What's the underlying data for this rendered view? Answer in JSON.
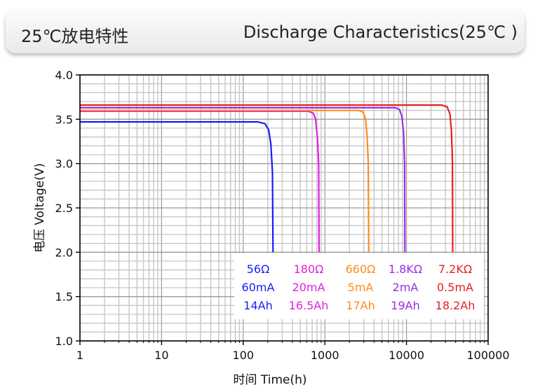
{
  "header": {
    "title_cn": "25℃放电特性",
    "title_en": "Discharge Characteristics(25℃ )"
  },
  "chart_data": {
    "type": "line",
    "title": "Discharge Characteristics(25℃ )",
    "xlabel": "时间 Time(h)",
    "ylabel": "电压 Voltage(V)",
    "xscale": "log",
    "xlim": [
      1,
      100000
    ],
    "ylim": [
      1.0,
      4.0
    ],
    "grid": true,
    "x_tick_labels": [
      "1",
      "10",
      "100",
      "1000",
      "10000",
      "100000"
    ],
    "y_tick_labels": [
      "1.0",
      "1.5",
      "2.0",
      "2.5",
      "3.0",
      "3.5",
      "4.0"
    ],
    "series": [
      {
        "name": "56Ω",
        "current": "60mA",
        "capacity": "14Ah",
        "color": "#1a1aff",
        "points": [
          [
            1,
            3.47
          ],
          [
            150,
            3.47
          ],
          [
            185,
            3.45
          ],
          [
            205,
            3.38
          ],
          [
            218,
            3.22
          ],
          [
            228,
            2.9
          ],
          [
            232,
            2.0
          ]
        ]
      },
      {
        "name": "180Ω",
        "current": "20mA",
        "capacity": "16.5Ah",
        "color": "#e020e0",
        "points": [
          [
            1,
            3.59
          ],
          [
            620,
            3.59
          ],
          [
            720,
            3.57
          ],
          [
            770,
            3.5
          ],
          [
            810,
            3.3
          ],
          [
            840,
            3.0
          ],
          [
            850,
            2.0
          ]
        ]
      },
      {
        "name": "660Ω",
        "current": "5mA",
        "capacity": "17Ah",
        "color": "#ff8c1a",
        "points": [
          [
            1,
            3.6
          ],
          [
            2600,
            3.6
          ],
          [
            2950,
            3.58
          ],
          [
            3150,
            3.5
          ],
          [
            3300,
            3.3
          ],
          [
            3400,
            3.0
          ],
          [
            3450,
            2.0
          ]
        ]
      },
      {
        "name": "1.8KΩ",
        "current": "2mA",
        "capacity": "19Ah",
        "color": "#9a2ee6",
        "points": [
          [
            1,
            3.63
          ],
          [
            7300,
            3.63
          ],
          [
            8200,
            3.61
          ],
          [
            8800,
            3.53
          ],
          [
            9200,
            3.35
          ],
          [
            9500,
            3.0
          ],
          [
            9550,
            2.0
          ]
        ]
      },
      {
        "name": "7.2KΩ",
        "current": "0.5mA",
        "capacity": "18.2Ah",
        "color": "#e82020",
        "points": [
          [
            1,
            3.66
          ],
          [
            27000,
            3.66
          ],
          [
            31500,
            3.64
          ],
          [
            34000,
            3.56
          ],
          [
            35500,
            3.38
          ],
          [
            36500,
            3.05
          ],
          [
            36800,
            2.0
          ]
        ]
      }
    ],
    "annotations": [
      {
        "series": "56Ω",
        "lines": [
          "56Ω",
          "60mA",
          "14Ah"
        ]
      },
      {
        "series": "180Ω",
        "lines": [
          "180Ω",
          "20mA",
          "16.5Ah"
        ]
      },
      {
        "series": "660Ω",
        "lines": [
          "660Ω",
          "5mA",
          "17Ah"
        ]
      },
      {
        "series": "1.8KΩ",
        "lines": [
          "1.8KΩ",
          "2mA",
          "19Ah"
        ]
      },
      {
        "series": "7.2KΩ",
        "lines": [
          "7.2KΩ",
          "0.5mA",
          "18.2Ah"
        ]
      }
    ]
  }
}
